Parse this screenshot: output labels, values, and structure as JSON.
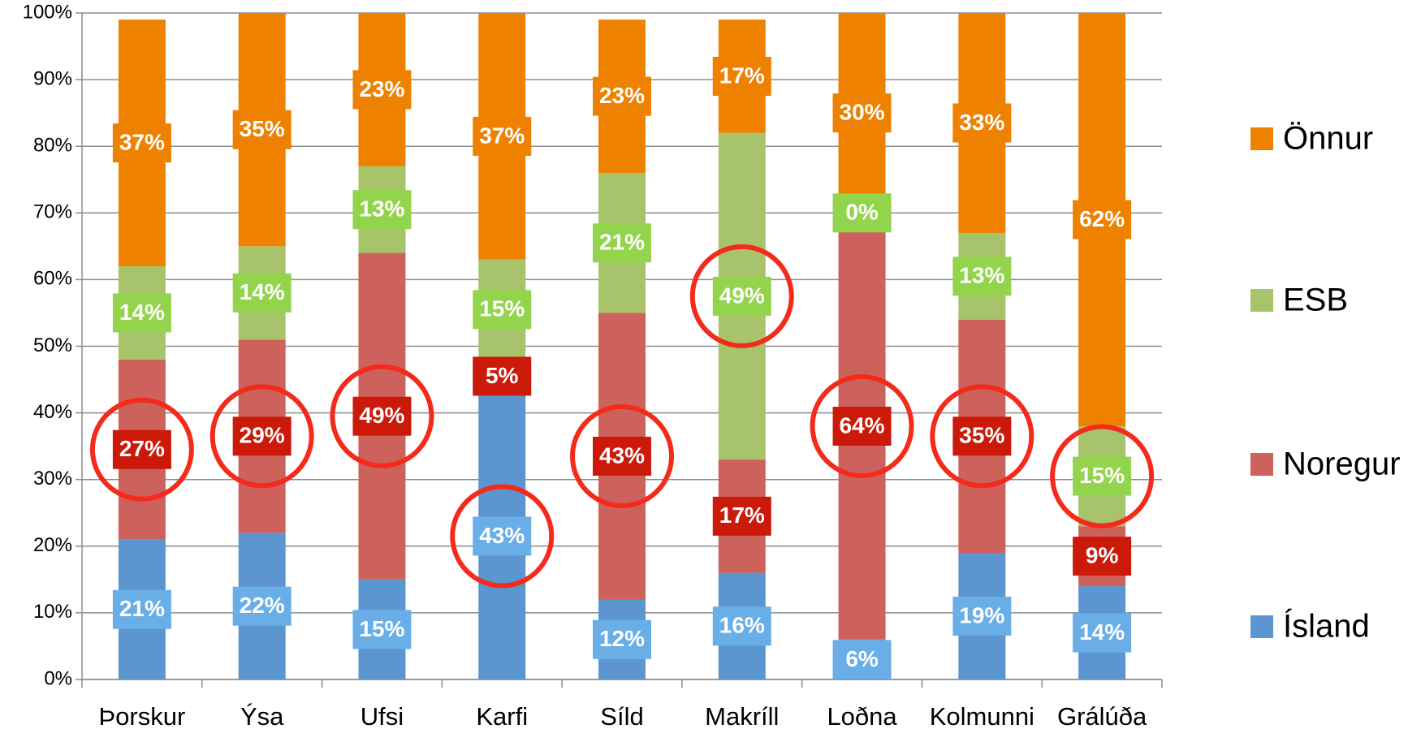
{
  "chart_data": {
    "type": "stacked_bar",
    "categories": [
      "Þorskur",
      "Ýsa",
      "Ufsi",
      "Karfi",
      "Síld",
      "Makríll",
      "Loðna",
      "Kolmunni",
      "Grálúða"
    ],
    "series": [
      {
        "name": "Ísland",
        "color": "#5b96d0",
        "label_color": "#6aaee8",
        "values": [
          21,
          22,
          15,
          43,
          12,
          16,
          6,
          19,
          14
        ],
        "value_labels": [
          "21%",
          "22%",
          "15%",
          "43%",
          "12%",
          "16%",
          "6%",
          "19%",
          "14%"
        ]
      },
      {
        "name": "Noregur",
        "color": "#cd625c",
        "label_color": "#cc1a0a",
        "values": [
          27,
          29,
          49,
          5,
          43,
          17,
          64,
          35,
          9
        ],
        "value_labels": [
          "27%",
          "29%",
          "49%",
          "5%",
          "43%",
          "17%",
          "64%",
          "35%",
          "9%"
        ]
      },
      {
        "name": "ESB",
        "color": "#a7c46a",
        "label_color": "#93d44d",
        "values": [
          14,
          14,
          13,
          15,
          21,
          49,
          0,
          13,
          15
        ],
        "value_labels": [
          "14%",
          "14%",
          "13%",
          "15%",
          "21%",
          "49%",
          "0%",
          "13%",
          "15%"
        ]
      },
      {
        "name": "Önnur",
        "color": "#ee8100",
        "label_color": "#ee8100",
        "values": [
          37,
          35,
          23,
          37,
          23,
          17,
          30,
          33,
          62
        ],
        "value_labels": [
          "37%",
          "35%",
          "23%",
          "37%",
          "23%",
          "17%",
          "30%",
          "33%",
          "62%"
        ]
      }
    ],
    "highlight": [
      1,
      1,
      1,
      0,
      1,
      2,
      1,
      1,
      2
    ],
    "ylim": [
      0,
      100
    ],
    "yticks": [
      {
        "value": 0,
        "label": "0%"
      },
      {
        "value": 10,
        "label": "10%"
      },
      {
        "value": 20,
        "label": "20%"
      },
      {
        "value": 30,
        "label": "30%"
      },
      {
        "value": 40,
        "label": "40%"
      },
      {
        "value": 50,
        "label": "50%"
      },
      {
        "value": 60,
        "label": "60%"
      },
      {
        "value": 70,
        "label": "70%"
      },
      {
        "value": 80,
        "label": "80%"
      },
      {
        "value": 90,
        "label": "90%"
      },
      {
        "value": 100,
        "label": "100%"
      }
    ],
    "grid": true
  }
}
